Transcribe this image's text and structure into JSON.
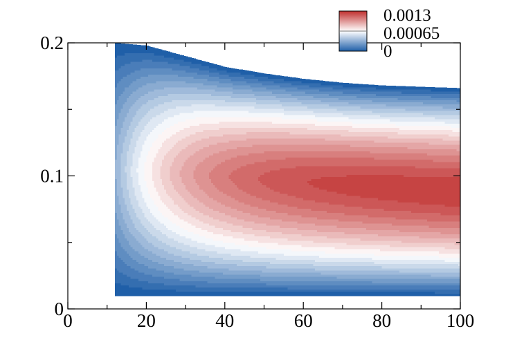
{
  "chart_data": {
    "type": "heatmap",
    "title": "",
    "xlabel": "",
    "ylabel": "",
    "xlim": [
      0,
      100
    ],
    "ylim": [
      0,
      0.2
    ],
    "x_ticks": [
      0,
      20,
      40,
      60,
      80,
      100
    ],
    "x_tick_labels": [
      "0",
      "20",
      "40",
      "60",
      "80",
      "100"
    ],
    "y_ticks": [
      0,
      0.1,
      0.2
    ],
    "y_tick_labels": [
      "0",
      "0.1",
      "0.2"
    ],
    "x_minor_step": 10,
    "y_minor_step": 0.05,
    "domain": {
      "x_start": 12,
      "x_end": 100,
      "y_bottom": 0.01,
      "top_boundary": [
        [
          12,
          0.2
        ],
        [
          20,
          0.198
        ],
        [
          30,
          0.19
        ],
        [
          40,
          0.182
        ],
        [
          50,
          0.177
        ],
        [
          60,
          0.173
        ],
        [
          70,
          0.17
        ],
        [
          80,
          0.168
        ],
        [
          90,
          0.167
        ],
        [
          100,
          0.166
        ]
      ]
    },
    "field_model": {
      "peak_value": 0.0013,
      "center_y_inlet": 0.105,
      "center_y_outlet": 0.088,
      "growth_scale_x": 18
    },
    "colorbar": {
      "min": 0,
      "max": 0.0013,
      "levels": 21,
      "ticks": [
        0.0013,
        0.00065,
        0
      ],
      "tick_labels": [
        "0.0013",
        "0.00065",
        "0"
      ],
      "colors": [
        "#1f5fa8",
        "#ffffff",
        "#c0302f"
      ],
      "placement": "top-right"
    },
    "grid": false
  }
}
